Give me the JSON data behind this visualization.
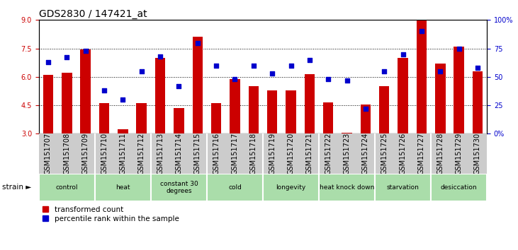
{
  "title": "GDS2830 / 147421_at",
  "samples": [
    "GSM151707",
    "GSM151708",
    "GSM151709",
    "GSM151710",
    "GSM151711",
    "GSM151712",
    "GSM151713",
    "GSM151714",
    "GSM151715",
    "GSM151716",
    "GSM151717",
    "GSM151718",
    "GSM151719",
    "GSM151720",
    "GSM151721",
    "GSM151722",
    "GSM151723",
    "GSM151724",
    "GSM151725",
    "GSM151726",
    "GSM151727",
    "GSM151728",
    "GSM151729",
    "GSM151730"
  ],
  "bar_values": [
    6.1,
    6.2,
    7.45,
    4.6,
    3.25,
    4.6,
    7.0,
    4.35,
    8.1,
    4.6,
    5.9,
    5.5,
    5.3,
    5.3,
    6.15,
    4.65,
    3.05,
    4.55,
    5.5,
    7.0,
    9.0,
    6.7,
    7.6,
    6.3
  ],
  "dot_values": [
    63,
    67,
    73,
    38,
    30,
    55,
    68,
    42,
    80,
    60,
    48,
    60,
    53,
    60,
    65,
    48,
    47,
    22,
    55,
    70,
    90,
    55,
    75,
    58
  ],
  "bar_color": "#cc0000",
  "dot_color": "#0000cc",
  "ylim_left": [
    3,
    9
  ],
  "ylim_right": [
    0,
    100
  ],
  "yticks_left": [
    3,
    4.5,
    6,
    7.5,
    9
  ],
  "yticks_right": [
    0,
    25,
    50,
    75,
    100
  ],
  "ytick_labels_right": [
    "0%",
    "25",
    "50",
    "75",
    "100%"
  ],
  "grid_lines": [
    4.5,
    6.0,
    7.5
  ],
  "groups": [
    {
      "label": "control",
      "start": 0,
      "end": 2,
      "color": "#aaddaa"
    },
    {
      "label": "heat",
      "start": 3,
      "end": 5,
      "color": "#aaddaa"
    },
    {
      "label": "constant 30\ndegrees",
      "start": 6,
      "end": 8,
      "color": "#aaddaa"
    },
    {
      "label": "cold",
      "start": 9,
      "end": 11,
      "color": "#aaddaa"
    },
    {
      "label": "longevity",
      "start": 12,
      "end": 14,
      "color": "#aaddaa"
    },
    {
      "label": "heat knock down",
      "start": 15,
      "end": 17,
      "color": "#aaddaa"
    },
    {
      "label": "starvation",
      "start": 18,
      "end": 20,
      "color": "#aaddaa"
    },
    {
      "label": "desiccation",
      "start": 21,
      "end": 23,
      "color": "#aaddaa"
    }
  ],
  "legend_items": [
    {
      "label": "transformed count",
      "color": "#cc0000"
    },
    {
      "label": "percentile rank within the sample",
      "color": "#0000cc"
    }
  ],
  "strain_label": "strain ►",
  "left_tick_color": "#cc0000",
  "right_tick_color": "#0000cc",
  "title_fontsize": 10,
  "tick_fontsize": 7,
  "bar_width": 0.55,
  "sample_label_color": "#cccccc",
  "group_separator_color": "#ffffff"
}
